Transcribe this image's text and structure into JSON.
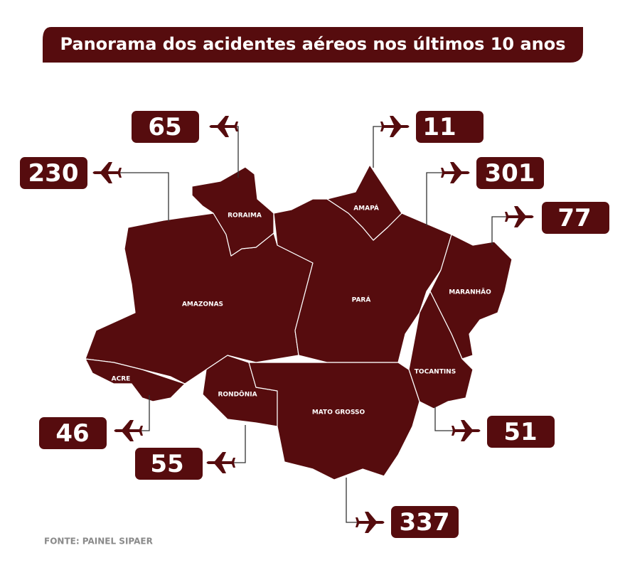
{
  "title": "Panorama dos acidentes aéreos nos últimos 10 anos",
  "states": [
    {
      "name": "RORAIMA",
      "accidents": 65
    },
    {
      "name": "AMAZONAS",
      "accidents": 230
    },
    {
      "name": "AMAPÁ",
      "accidents": 11
    },
    {
      "name": "PARÁ",
      "accidents": 301
    },
    {
      "name": "MARANHÃO",
      "accidents": 77
    },
    {
      "name": "ACRE",
      "accidents": 46
    },
    {
      "name": "RONDÔNIA",
      "accidents": 55
    },
    {
      "name": "TOCANTINS",
      "accidents": 51
    },
    {
      "name": "MATO GROSSO",
      "accidents": 337
    }
  ],
  "source": "FONTE: PAINEL SIPAER"
}
